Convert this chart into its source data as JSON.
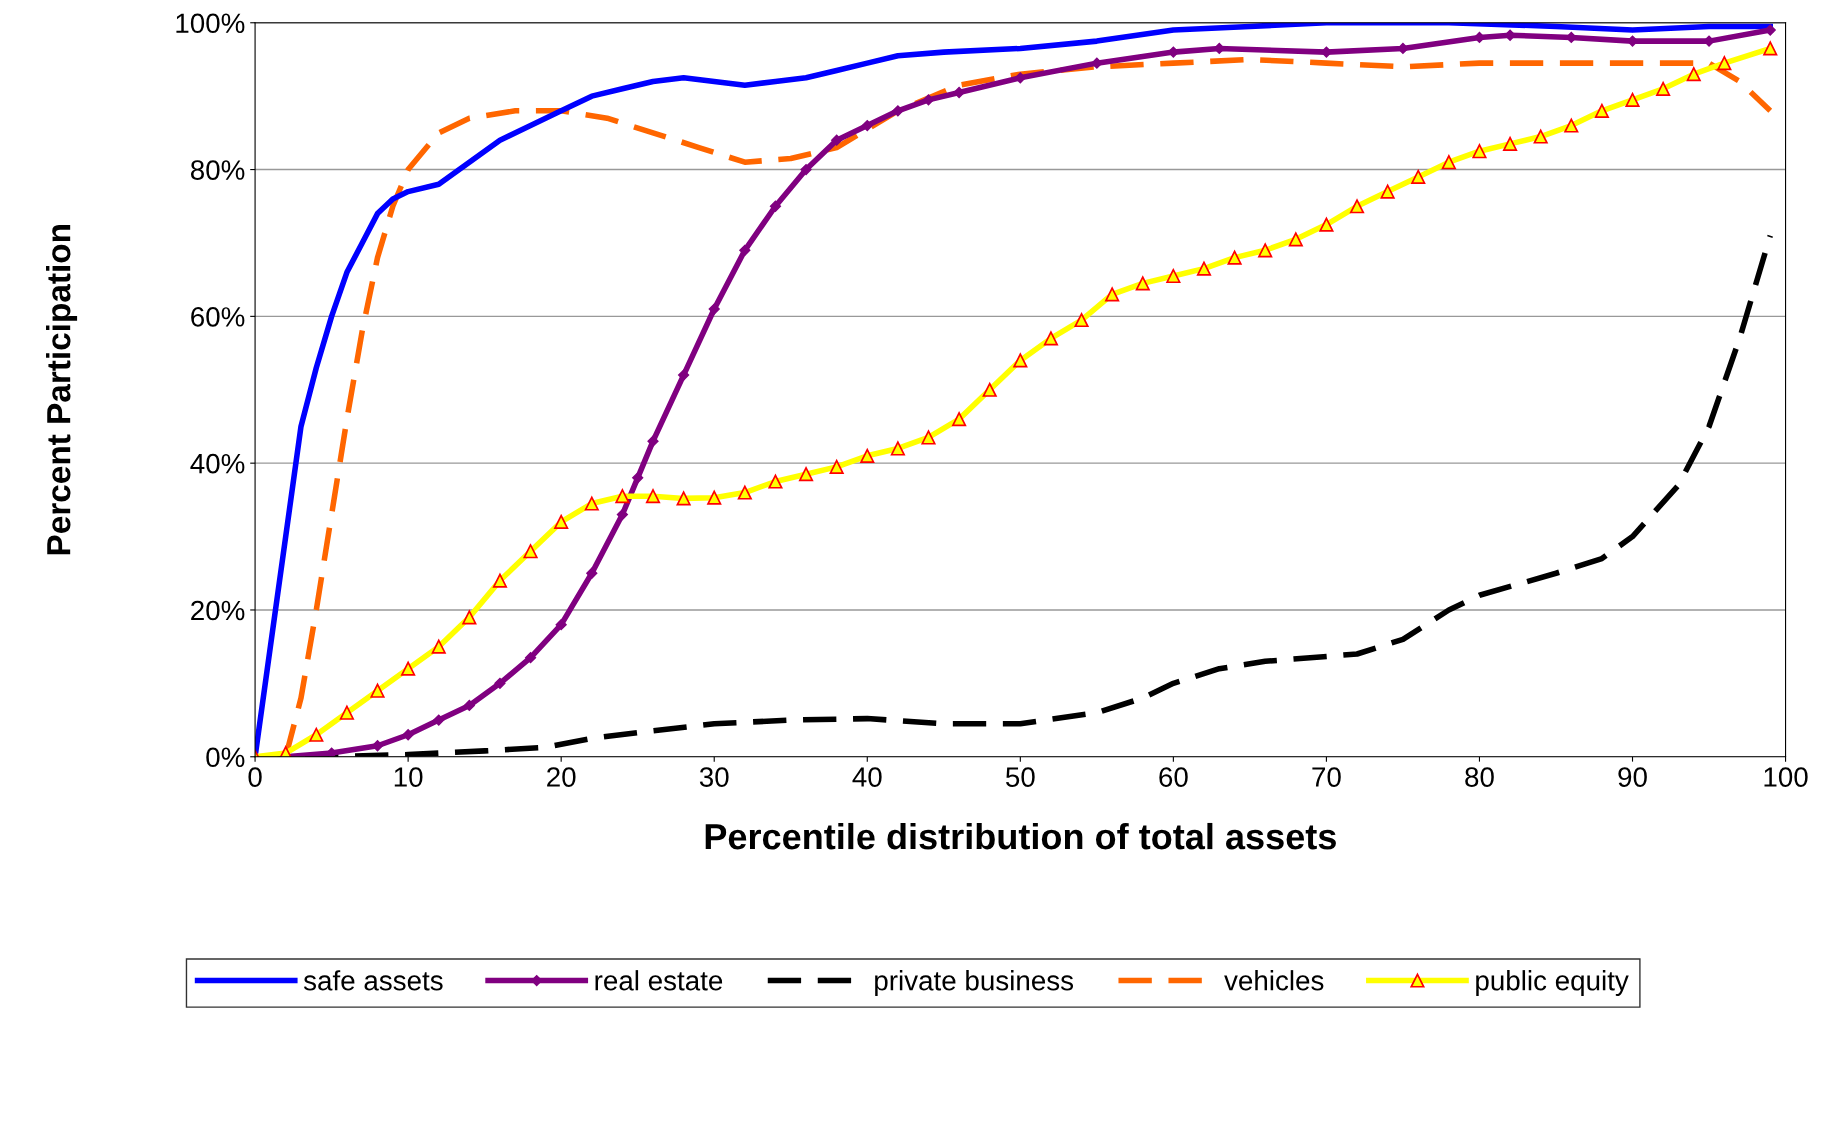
{
  "chart_data": {
    "type": "line",
    "xlabel": "Percentile distribution of total assets",
    "ylabel": "Percent Participation",
    "xlim": [
      0,
      100
    ],
    "ylim": [
      0,
      100
    ],
    "xticks": [
      0,
      10,
      20,
      30,
      40,
      50,
      60,
      70,
      80,
      90,
      100
    ],
    "yticks": [
      {
        "value": 0,
        "label": "0%"
      },
      {
        "value": 20,
        "label": "20%"
      },
      {
        "value": 40,
        "label": "40%"
      },
      {
        "value": 60,
        "label": "60%"
      },
      {
        "value": 80,
        "label": "80%"
      },
      {
        "value": 100,
        "label": "100%"
      }
    ],
    "grid": "y",
    "legend": "bottom",
    "series": [
      {
        "name": "safe assets",
        "color": "#0000ff",
        "marker": "none",
        "line_style": "solid",
        "x": [
          0,
          1,
          2,
          3,
          4,
          5,
          6,
          7,
          8,
          9,
          10,
          12,
          14,
          16,
          18,
          20,
          22,
          24,
          26,
          28,
          30,
          32,
          34,
          36,
          38,
          40,
          42,
          45,
          50,
          55,
          60,
          65,
          70,
          78,
          85,
          90,
          95,
          99
        ],
        "values": [
          0,
          15,
          30,
          45,
          53,
          60,
          66,
          70,
          74,
          76,
          77,
          78,
          81,
          84,
          86,
          88,
          90,
          91,
          92,
          92.5,
          92,
          91.5,
          92,
          92.5,
          93.5,
          94.5,
          95.5,
          96,
          96.5,
          97.5,
          99,
          99.5,
          100,
          100,
          99.5,
          99,
          99.5,
          99.5
        ]
      },
      {
        "name": "real estate",
        "color": "#800080",
        "marker": "diamond",
        "line_style": "solid",
        "x": [
          2,
          5,
          8,
          10,
          12,
          14,
          16,
          18,
          20,
          22,
          24,
          25,
          26,
          28,
          30,
          32,
          34,
          36,
          38,
          40,
          42,
          44,
          46,
          50,
          55,
          60,
          63,
          70,
          75,
          80,
          82,
          86,
          90,
          95,
          99
        ],
        "values": [
          0,
          0.5,
          1.5,
          3,
          5,
          7,
          10,
          13.5,
          18,
          25,
          33,
          38,
          43,
          52,
          61,
          69,
          75,
          80,
          84,
          86,
          88,
          89.5,
          90.5,
          92.5,
          94.5,
          96,
          96.5,
          96,
          96.5,
          98,
          98.3,
          98,
          97.5,
          97.5,
          99
        ]
      },
      {
        "name": "private business",
        "color": "#000000",
        "marker": "none",
        "line_style": "dashed",
        "x": [
          0,
          5,
          10,
          15,
          19,
          22,
          25,
          30,
          35,
          40,
          45,
          50,
          55,
          58,
          60,
          63,
          66,
          72,
          75,
          78,
          80,
          85,
          88,
          90,
          93,
          95,
          97,
          99
        ],
        "values": [
          0,
          0,
          0.3,
          0.8,
          1.3,
          2.5,
          3.3,
          4.5,
          5,
          5.2,
          4.5,
          4.5,
          6,
          8,
          10,
          12,
          13,
          14,
          16,
          20,
          22,
          25,
          27,
          30,
          37,
          45,
          57,
          71
        ]
      },
      {
        "name": "vehicles",
        "color": "#ff6600",
        "marker": "none",
        "line_style": "dashed",
        "x": [
          2,
          3,
          4,
          5,
          6,
          7,
          8,
          9,
          10,
          12,
          14,
          17,
          20,
          23,
          26,
          29,
          32,
          35,
          38,
          42,
          46,
          50,
          55,
          60,
          65,
          70,
          75,
          80,
          85,
          90,
          95,
          97,
          99
        ],
        "values": [
          0,
          8,
          20,
          33,
          46,
          58,
          68,
          75,
          80,
          85,
          87,
          88,
          88,
          87,
          85,
          83,
          81,
          81.5,
          83,
          88,
          91.5,
          93,
          94,
          94.5,
          95,
          94.5,
          94,
          94.5,
          94.5,
          94.5,
          94.5,
          92,
          88
        ]
      },
      {
        "name": "public equity",
        "color": "#ffff00",
        "marker": "triangle",
        "line_style": "solid",
        "x": [
          0,
          2,
          4,
          6,
          8,
          10,
          12,
          14,
          16,
          18,
          20,
          22,
          24,
          26,
          28,
          30,
          32,
          34,
          36,
          38,
          40,
          42,
          44,
          46,
          48,
          50,
          52,
          54,
          56,
          58,
          60,
          62,
          64,
          66,
          68,
          70,
          72,
          74,
          76,
          78,
          80,
          82,
          84,
          86,
          88,
          90,
          92,
          94,
          96,
          99
        ],
        "values": [
          0,
          0.5,
          3,
          6,
          9,
          12,
          15,
          19,
          24,
          28,
          32,
          34.5,
          35.5,
          35.5,
          35.2,
          35.3,
          36,
          37.5,
          38.5,
          39.5,
          41,
          42,
          43.5,
          46,
          50,
          54,
          57,
          59.5,
          63,
          64.5,
          65.5,
          66.5,
          68,
          69,
          70.5,
          72.5,
          75,
          77,
          79,
          81,
          82.5,
          83.5,
          84.5,
          86,
          88,
          89.5,
          91,
          93,
          94.5,
          96.5
        ]
      }
    ]
  }
}
